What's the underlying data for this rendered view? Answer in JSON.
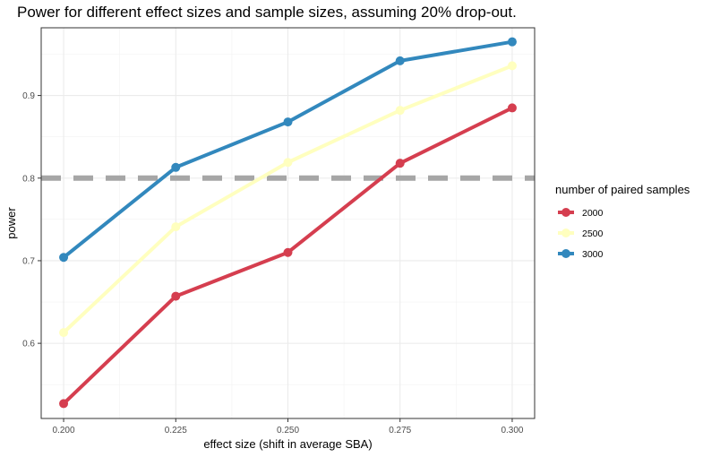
{
  "chart_data": {
    "type": "line",
    "title": "Power for different effect sizes and sample sizes, assuming 20% drop-out.",
    "xlabel": "effect size (shift in average SBA)",
    "ylabel": "power",
    "x": [
      0.2,
      0.225,
      0.25,
      0.275,
      0.3
    ],
    "x_tick_labels": [
      "0.200",
      "0.225",
      "0.250",
      "0.275",
      "0.300"
    ],
    "y_ticks": [
      0.6,
      0.7,
      0.8,
      0.9
    ],
    "y_tick_labels": [
      "0.6",
      "0.7",
      "0.8",
      "0.9"
    ],
    "xlim": [
      0.195,
      0.305
    ],
    "ylim": [
      0.509,
      0.982
    ],
    "grid": true,
    "reference_line": {
      "y": 0.8,
      "style": "dashed",
      "color": "#a6a6a6"
    },
    "legend": {
      "title": "number of paired samples",
      "position": "right"
    },
    "series": [
      {
        "name": "2000",
        "color": "#d53e4f",
        "values": [
          0.527,
          0.657,
          0.71,
          0.818,
          0.885
        ]
      },
      {
        "name": "2500",
        "color": "#ffffbf",
        "values": [
          0.613,
          0.741,
          0.819,
          0.882,
          0.936
        ]
      },
      {
        "name": "3000",
        "color": "#3288bd",
        "values": [
          0.704,
          0.813,
          0.868,
          0.942,
          0.965
        ]
      }
    ]
  }
}
